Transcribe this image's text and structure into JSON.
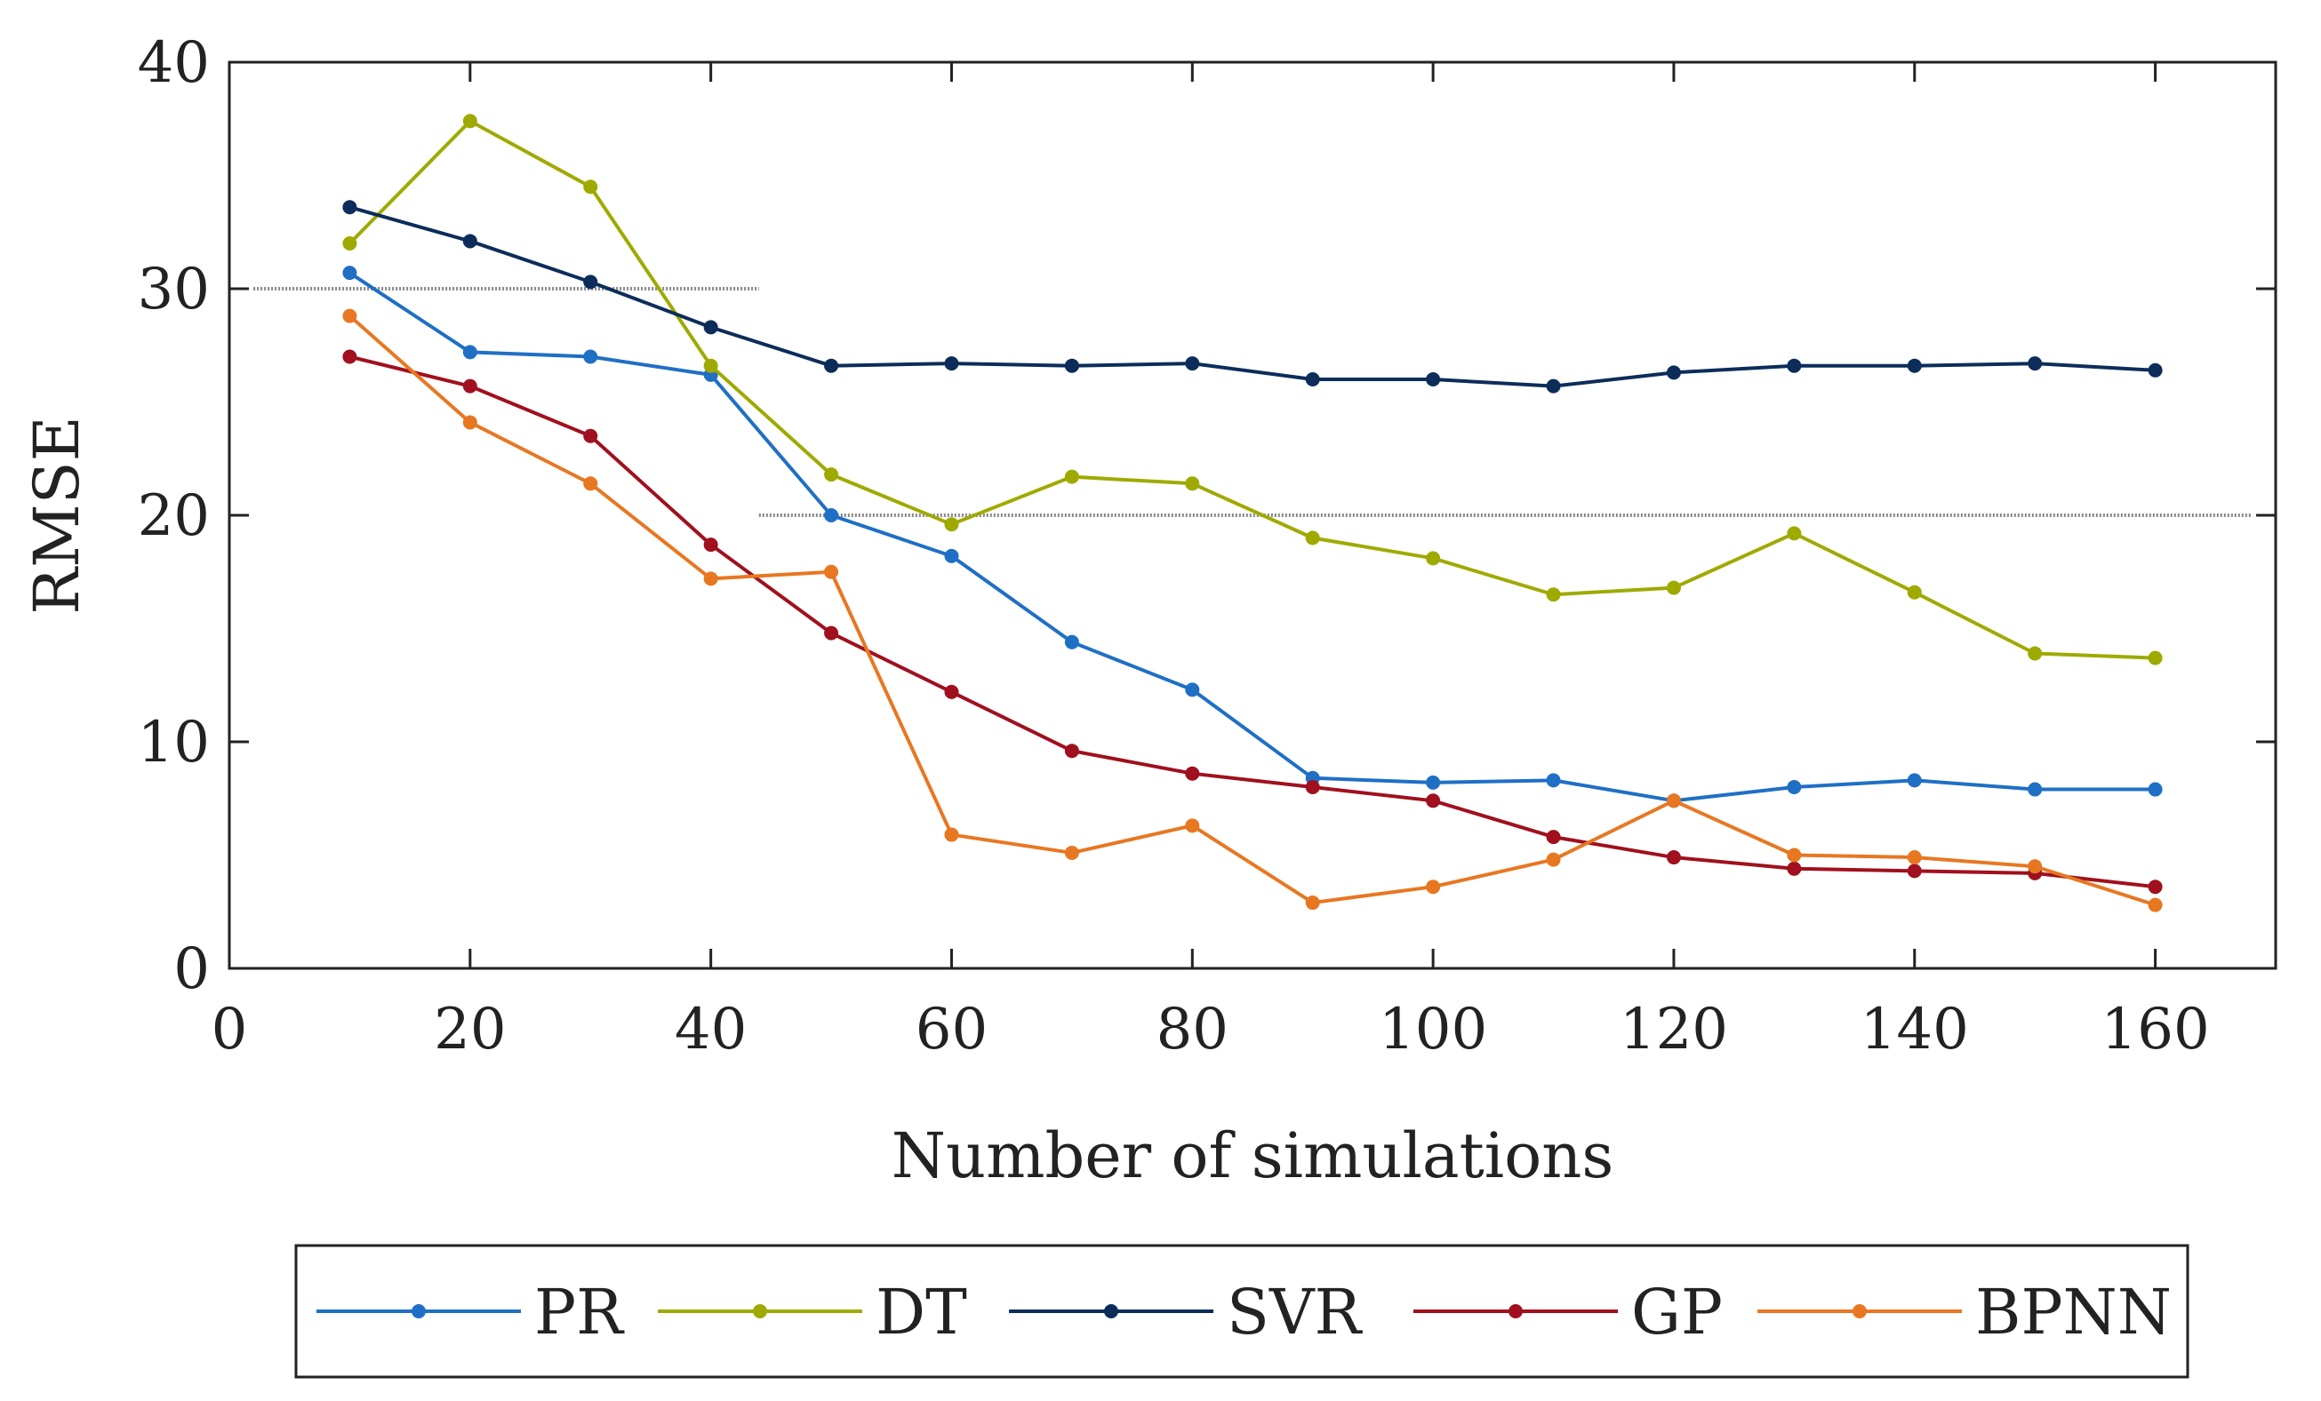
{
  "chart_data": {
    "type": "line",
    "title": "",
    "xlabel": "Number of simulations",
    "ylabel": "RMSE",
    "xlim": [
      0,
      170
    ],
    "ylim": [
      0,
      40
    ],
    "xticks": [
      0,
      20,
      40,
      60,
      80,
      100,
      120,
      140,
      160
    ],
    "yticks": [
      0,
      10,
      20,
      30,
      40
    ],
    "x": [
      10,
      20,
      30,
      40,
      50,
      60,
      70,
      80,
      90,
      100,
      110,
      120,
      130,
      140,
      150,
      160
    ],
    "series": [
      {
        "name": "PR",
        "color": "#1f6fc5",
        "values": [
          30.7,
          27.2,
          27.0,
          26.2,
          20.0,
          18.2,
          14.4,
          12.3,
          8.4,
          8.2,
          8.3,
          7.4,
          8.0,
          8.3,
          7.9,
          7.9
        ]
      },
      {
        "name": "DT",
        "color": "#9faa00",
        "values": [
          32.0,
          37.4,
          34.5,
          26.6,
          21.8,
          19.6,
          21.7,
          21.4,
          19.0,
          18.1,
          16.5,
          16.8,
          19.2,
          16.6,
          13.9,
          13.7
        ]
      },
      {
        "name": "SVR",
        "color": "#0c2d5a",
        "values": [
          33.6,
          32.1,
          30.3,
          28.3,
          26.6,
          26.7,
          26.6,
          26.7,
          26.0,
          26.0,
          25.7,
          26.3,
          26.6,
          26.6,
          26.7,
          26.4
        ]
      },
      {
        "name": "GP",
        "color": "#a0101e",
        "values": [
          27.0,
          25.7,
          23.5,
          18.7,
          14.8,
          12.2,
          9.6,
          8.6,
          8.0,
          7.4,
          5.8,
          4.9,
          4.4,
          4.3,
          4.2,
          3.6
        ]
      },
      {
        "name": "BPNN",
        "color": "#e87722",
        "values": [
          28.8,
          24.1,
          21.4,
          17.2,
          17.5,
          5.9,
          5.1,
          6.3,
          2.9,
          3.6,
          4.8,
          7.4,
          5.0,
          4.9,
          4.5,
          2.8
        ]
      }
    ],
    "reference_lines": [
      {
        "y": 30,
        "x_start": 2,
        "x_end": 44,
        "color": "#888888"
      },
      {
        "y": 20,
        "x_start": 44,
        "x_end": 168,
        "color": "#888888"
      }
    ],
    "legend_position": "bottom"
  }
}
